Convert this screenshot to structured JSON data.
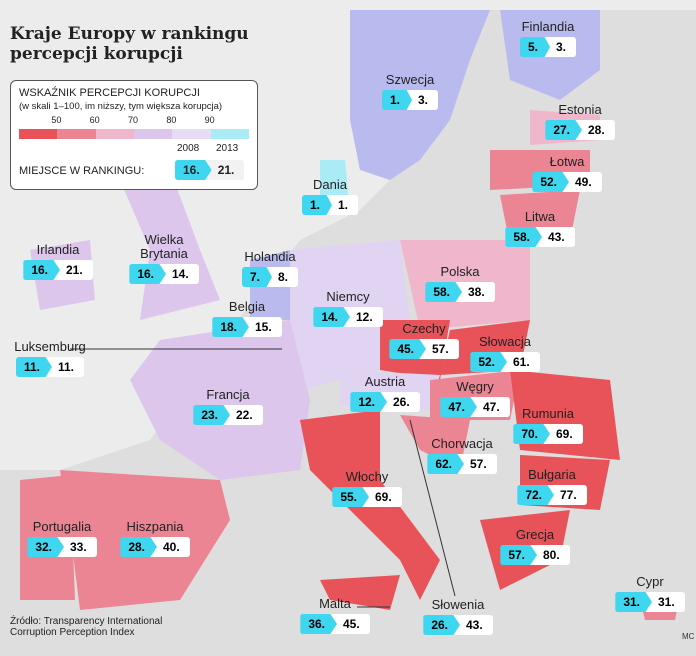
{
  "header": {
    "title": [
      "Kraje Europy w rankingu",
      "percepcji korupcji"
    ]
  },
  "legend": {
    "title": "WSKAŹNIK PERCEPCJI KORUPCJI",
    "subtitle": "(w skali 1–100, im niższy, tym większa korupcja)",
    "scale": [
      50,
      60,
      70,
      80,
      90
    ],
    "colors": [
      "#e8535a",
      "#ec8593",
      "#f0b6cb",
      "#dcc6ec",
      "#e6dcf4",
      "#a9ecf6"
    ],
    "years": [
      "2008",
      "2013"
    ],
    "rank_label": "MIEJSCE W RANKINGU:",
    "example": [
      "16.",
      "21."
    ]
  },
  "countries": [
    {
      "name": "Finlandia",
      "r2008": "5.",
      "r2013": "3."
    },
    {
      "name": "Szwecja",
      "r2008": "1.",
      "r2013": "3."
    },
    {
      "name": "Estonia",
      "r2008": "27.",
      "r2013": "28."
    },
    {
      "name": "Łotwa",
      "r2008": "52.",
      "r2013": "49."
    },
    {
      "name": "Dania",
      "r2008": "1.",
      "r2013": "1."
    },
    {
      "name": "Litwa",
      "r2008": "58.",
      "r2013": "43."
    },
    {
      "name": "Irlandia",
      "r2008": "16.",
      "r2013": "21."
    },
    {
      "name": "Wielka Brytania",
      "r2008": "16.",
      "r2013": "14."
    },
    {
      "name": "Holandia",
      "r2008": "7.",
      "r2013": "8."
    },
    {
      "name": "Polska",
      "r2008": "58.",
      "r2013": "38."
    },
    {
      "name": "Niemcy",
      "r2008": "14.",
      "r2013": "12."
    },
    {
      "name": "Belgia",
      "r2008": "18.",
      "r2013": "15."
    },
    {
      "name": "Luksemburg",
      "r2008": "11.",
      "r2013": "11."
    },
    {
      "name": "Czechy",
      "r2008": "45.",
      "r2013": "57."
    },
    {
      "name": "Słowacja",
      "r2008": "52.",
      "r2013": "61."
    },
    {
      "name": "Austria",
      "r2008": "12.",
      "r2013": "26."
    },
    {
      "name": "Węgry",
      "r2008": "47.",
      "r2013": "47."
    },
    {
      "name": "Francja",
      "r2008": "23.",
      "r2013": "22."
    },
    {
      "name": "Rumunia",
      "r2008": "70.",
      "r2013": "69."
    },
    {
      "name": "Chorwacja",
      "r2008": "62.",
      "r2013": "57."
    },
    {
      "name": "Bułgaria",
      "r2008": "72.",
      "r2013": "77."
    },
    {
      "name": "Włochy",
      "r2008": "55.",
      "r2013": "69."
    },
    {
      "name": "Portugalia",
      "r2008": "32.",
      "r2013": "33."
    },
    {
      "name": "Hiszpania",
      "r2008": "28.",
      "r2013": "40."
    },
    {
      "name": "Grecja",
      "r2008": "57.",
      "r2013": "80."
    },
    {
      "name": "Malta",
      "r2008": "36.",
      "r2013": "45."
    },
    {
      "name": "Słowenia",
      "r2008": "26.",
      "r2013": "43."
    },
    {
      "name": "Cypr",
      "r2008": "31.",
      "r2013": "31."
    }
  ],
  "footer": {
    "source": "Źródło: Transparency International Corruption Perception Index",
    "credit": "MC"
  }
}
